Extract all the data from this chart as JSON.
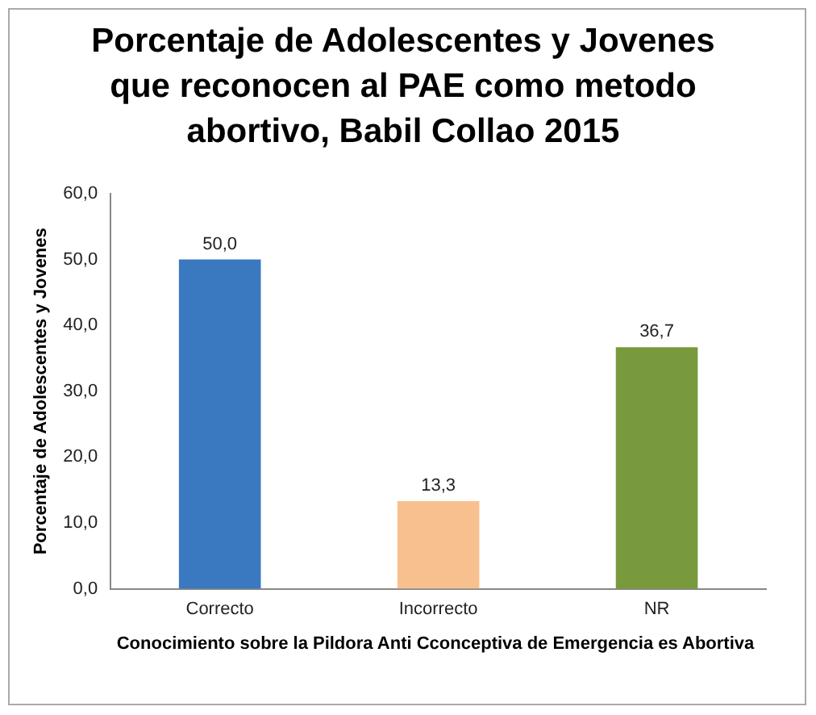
{
  "chart_data": {
    "type": "bar",
    "title": "Porcentaje de Adolescentes y Jovenes que reconocen al PAE como metodo abortivo, Babil Collao 2015",
    "xlabel": "Conocimiento sobre la Pildora Anti Cconceptiva de Emergencia es Abortiva",
    "ylabel": "Porcentaje de Adolescentes y Jovenes",
    "categories": [
      "Correcto",
      "Incorrecto",
      "NR"
    ],
    "values": [
      50.0,
      13.3,
      36.7
    ],
    "colors": [
      "#3a78c0",
      "#f9c08f",
      "#789a3c"
    ],
    "value_labels": [
      "50,0",
      "13,3",
      "36,7"
    ],
    "ylim": [
      0,
      60
    ],
    "yticks": [
      {
        "value": 0,
        "label": "0,0"
      },
      {
        "value": 10,
        "label": "10,0"
      },
      {
        "value": 20,
        "label": "20,0"
      },
      {
        "value": 30,
        "label": "30,0"
      },
      {
        "value": 40,
        "label": "40,0"
      },
      {
        "value": 50,
        "label": "50,0"
      },
      {
        "value": 60,
        "label": "60,0"
      }
    ],
    "grid": false,
    "legend": false
  }
}
